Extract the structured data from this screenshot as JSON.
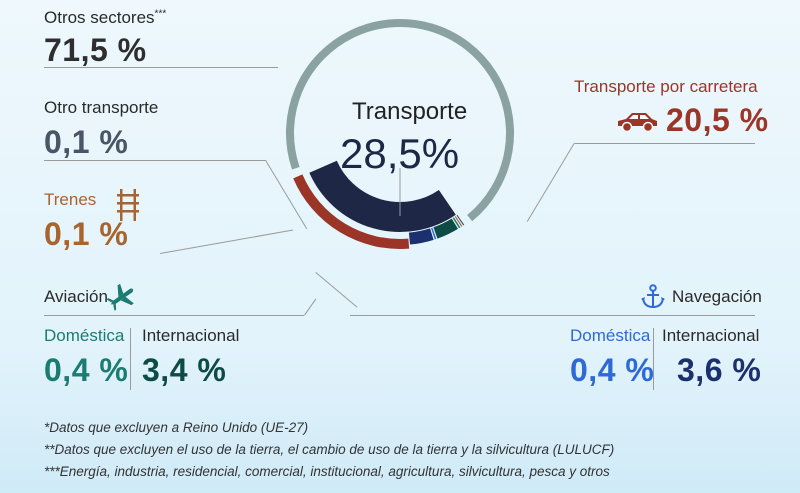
{
  "chart_data": {
    "type": "pie",
    "center": {
      "title": "Transporte",
      "value": "28,5%"
    },
    "categories": [
      "Otros sectores",
      "Transporte por carretera",
      "Navegación Internacional",
      "Navegación Doméstica",
      "Aviación Internacional",
      "Aviación Doméstica",
      "Trenes",
      "Otro transporte"
    ],
    "values": [
      71.5,
      20.5,
      3.6,
      0.4,
      3.4,
      0.4,
      0.1,
      0.1
    ],
    "colors": {
      "otros": "#8aa2a2",
      "transporte_inner": "#1f2747",
      "carretera": "#9a3527",
      "nav_internacional": "#1c2f6e",
      "nav_domestica": "#2d6ad6",
      "aviacion_internacional": "#0d4b45",
      "aviacion_domestica": "#23806f",
      "trenes": "#a8642e",
      "otro_transporte": "#3e4e66"
    }
  },
  "labels": {
    "otros_sectores": {
      "label": "Otros sectores",
      "sup": "***",
      "value": "71,5 %"
    },
    "otro_transporte": {
      "label": "Otro transporte",
      "value": "0,1 %"
    },
    "trenes": {
      "label": "Trenes",
      "value": "0,1 %"
    },
    "aviacion": {
      "label": "Aviación",
      "domestica_label": "Doméstica",
      "domestica_value": "0,4 %",
      "internacional_label": "Internacional",
      "internacional_value": "3,4 %"
    },
    "carretera": {
      "label": "Transporte por carretera",
      "value": "20,5 %"
    },
    "navegacion": {
      "label": "Navegación",
      "domestica_label": "Doméstica",
      "domestica_value": "0,4 %",
      "internacional_label": "Internacional",
      "internacional_value": "3,6 %"
    }
  },
  "icons": {
    "trenes": "train-tracks-icon",
    "aviacion": "airplane-icon",
    "carretera": "car-icon",
    "navegacion": "anchor-icon"
  },
  "footnotes": [
    "*Datos que excluyen a Reino Unido (UE-27)",
    "**Datos que excluyen el uso de la tierra, el cambio de uso de la tierra y la silvicultura (LULUCF)",
    "***Energía, industria, residencial, comercial, institucional, agricultura, silvicultura, pesca y otros"
  ]
}
